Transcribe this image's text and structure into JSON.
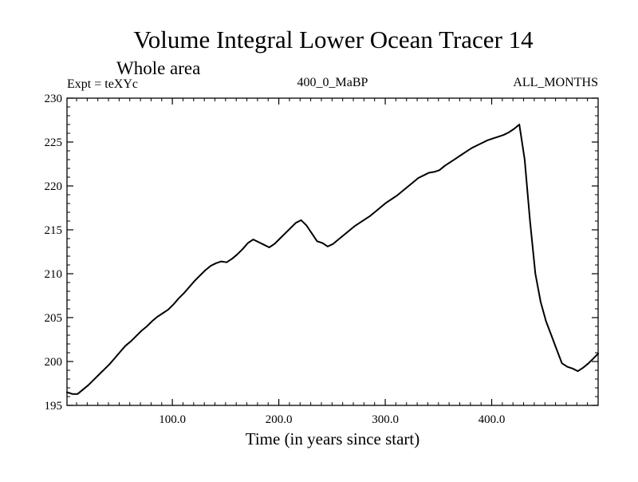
{
  "chart_data": {
    "type": "line",
    "title": "Volume Integral Lower Ocean Tracer 14",
    "subtitle": "Whole area",
    "annotations": {
      "left": "Expt = teXYc",
      "center": "400_0_MaBP",
      "right": "ALL_MONTHS"
    },
    "xlabel": "Time (in years since start)",
    "ylabel": "",
    "xlim": [
      1,
      500
    ],
    "ylim": [
      195,
      230
    ],
    "xticks": [
      100,
      200,
      300,
      400
    ],
    "xtick_labels": [
      "100.0",
      "200.0",
      "300.0",
      "400.0"
    ],
    "yticks": [
      195,
      200,
      205,
      210,
      215,
      220,
      225,
      230
    ],
    "ytick_labels": [
      "195",
      "200",
      "205",
      "210",
      "215",
      "220",
      "225",
      "230"
    ],
    "grid": false,
    "legend": "none",
    "series": [
      {
        "color": "#000000",
        "x": [
          1,
          6,
          11,
          16,
          21,
          26,
          31,
          36,
          41,
          46,
          51,
          56,
          61,
          66,
          71,
          76,
          81,
          86,
          91,
          96,
          101,
          106,
          111,
          116,
          121,
          126,
          131,
          136,
          141,
          146,
          151,
          156,
          161,
          166,
          171,
          176,
          181,
          186,
          191,
          196,
          201,
          206,
          211,
          216,
          221,
          226,
          231,
          236,
          241,
          246,
          251,
          256,
          261,
          266,
          271,
          276,
          281,
          286,
          291,
          296,
          301,
          306,
          311,
          316,
          321,
          326,
          331,
          336,
          341,
          346,
          351,
          356,
          361,
          366,
          371,
          376,
          381,
          386,
          391,
          396,
          401,
          406,
          411,
          416,
          421,
          426,
          431,
          436,
          441,
          446,
          451,
          456,
          461,
          466,
          471,
          476,
          481,
          486,
          491,
          496,
          500
        ],
        "y": [
          196.5,
          196.3,
          196.3,
          196.8,
          197.3,
          197.9,
          198.5,
          199.1,
          199.7,
          200.4,
          201.1,
          201.8,
          202.3,
          202.9,
          203.5,
          204.0,
          204.6,
          205.1,
          205.5,
          205.9,
          206.5,
          207.2,
          207.8,
          208.5,
          209.2,
          209.8,
          210.4,
          210.9,
          211.2,
          211.4,
          211.3,
          211.7,
          212.2,
          212.8,
          213.5,
          213.9,
          213.6,
          213.3,
          213.0,
          213.4,
          214.0,
          214.6,
          215.2,
          215.8,
          216.1,
          215.5,
          214.6,
          213.7,
          213.5,
          213.1,
          213.4,
          213.9,
          214.4,
          214.9,
          215.4,
          215.8,
          216.2,
          216.6,
          217.1,
          217.6,
          218.1,
          218.5,
          218.9,
          219.4,
          219.9,
          220.4,
          220.9,
          221.2,
          221.5,
          221.6,
          221.8,
          222.3,
          222.7,
          223.1,
          223.5,
          223.9,
          224.3,
          224.6,
          224.9,
          225.2,
          225.4,
          225.6,
          225.8,
          226.1,
          226.5,
          227.0,
          223.0,
          216.0,
          210.0,
          206.8,
          204.6,
          203.0,
          201.4,
          199.8,
          199.4,
          199.2,
          198.9,
          199.3,
          199.8,
          200.4,
          200.9
        ]
      }
    ]
  }
}
